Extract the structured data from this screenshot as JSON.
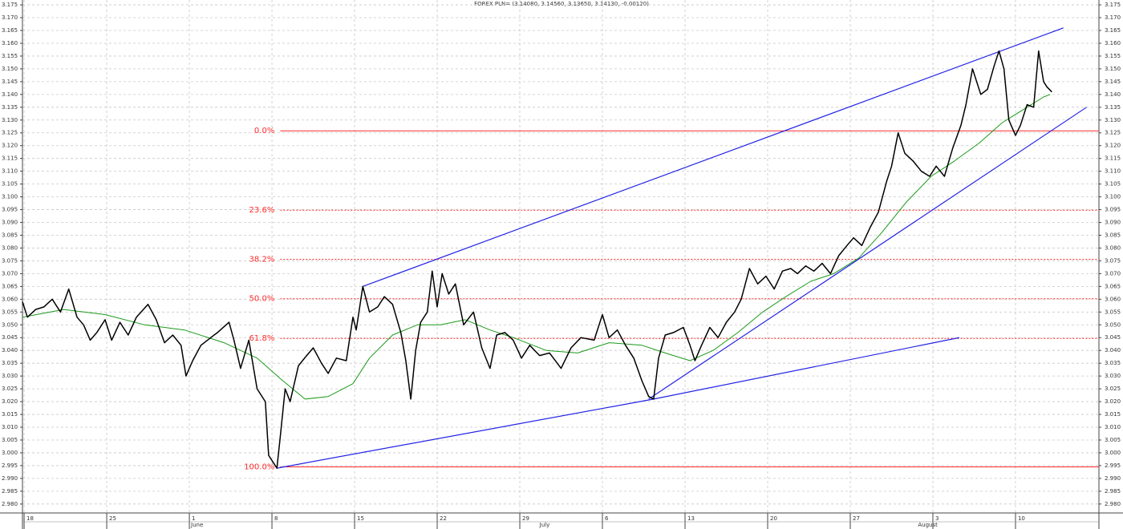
{
  "chart_data": {
    "type": "line",
    "title": "FOREX PLN= (3.14080, 3.14560, 3.13650, 3.14130, -0.00120)",
    "grid": true,
    "xlim": [
      -0.1,
      65.05
    ],
    "ylim": [
      2.9765,
      3.1769
    ],
    "xticks": [
      {
        "value": 0,
        "label": "18"
      },
      {
        "value": 5,
        "label": "25"
      },
      {
        "value": 10,
        "label": "1"
      },
      {
        "value": 15,
        "label": "8"
      },
      {
        "value": 20,
        "label": "15"
      },
      {
        "value": 25,
        "label": "22"
      },
      {
        "value": 30,
        "label": "29"
      },
      {
        "value": 35,
        "label": "6"
      },
      {
        "value": 40,
        "label": "13"
      },
      {
        "value": 45,
        "label": "20"
      },
      {
        "value": 50,
        "label": "27"
      },
      {
        "value": 55,
        "label": "3"
      },
      {
        "value": 60,
        "label": "10"
      }
    ],
    "month_labels": [
      {
        "value": 10,
        "label": "June"
      },
      {
        "value": 31.1,
        "label": "July"
      },
      {
        "value": 54.0,
        "label": "August"
      }
    ],
    "yticks": [
      3.175,
      {
        "value": 3.17,
        "label": "3.170"
      },
      3.165,
      {
        "value": 3.16,
        "label": "3.160"
      },
      3.155,
      {
        "value": 3.15,
        "label": "3.150"
      },
      3.145,
      {
        "value": 3.14,
        "label": "3.140"
      },
      3.135,
      {
        "value": 3.13,
        "label": "3.130"
      },
      3.125,
      {
        "value": 3.12,
        "label": "3.120"
      },
      3.115,
      {
        "value": 3.11,
        "label": "3.110"
      },
      3.105,
      {
        "value": 3.1,
        "label": "3.100"
      },
      3.095,
      {
        "value": 3.09,
        "label": "3.090"
      },
      3.085,
      {
        "value": 3.08,
        "label": "3.080"
      },
      3.075,
      {
        "value": 3.07,
        "label": "3.070"
      },
      3.065,
      {
        "value": 3.06,
        "label": "3.060"
      },
      3.055,
      {
        "value": 3.05,
        "label": "3.050"
      },
      3.045,
      {
        "value": 3.04,
        "label": "3.040"
      },
      3.035,
      {
        "value": 3.03,
        "label": "3.030"
      },
      3.025,
      {
        "value": 3.02,
        "label": "3.020"
      },
      3.015,
      {
        "value": 3.01,
        "label": "3.010"
      },
      3.005,
      {
        "value": 3,
        "label": "3.000"
      },
      2.995,
      {
        "value": 2.99,
        "label": "2.990"
      },
      2.985,
      {
        "value": 2.98,
        "label": "2.980"
      }
    ],
    "series": [
      {
        "color": "#000000",
        "x": [
          -0.1,
          0.2,
          0.7,
          1.2,
          1.7,
          2.2,
          2.7,
          3.2,
          3.6,
          4.0,
          4.4,
          4.9,
          5.3,
          5.8,
          6.3,
          6.8,
          7.5,
          8.0,
          8.5,
          9.0,
          9.5,
          9.8,
          10.2,
          10.7,
          11.3,
          11.7,
          12.4,
          12.7,
          13.1,
          13.6,
          14.1,
          14.6,
          14.8,
          15.1,
          15.3,
          15.5,
          15.8,
          16.1,
          16.6,
          17.1,
          17.5,
          18.0,
          18.4,
          18.9,
          19.5,
          19.9,
          20.1,
          20.5,
          20.9,
          21.4,
          21.8,
          22.3,
          22.8,
          23.1,
          23.4,
          23.7,
          24.0,
          24.4,
          24.7,
          25.0,
          25.3,
          25.7,
          26.1,
          26.6,
          27.2,
          27.7,
          28.2,
          28.6,
          29.1,
          29.6,
          30.1,
          30.6,
          31.2,
          31.8,
          32.5,
          33.1,
          33.7,
          34.5,
          35.0,
          35.4,
          35.9,
          36.4,
          36.9,
          37.4,
          37.8,
          38.1,
          38.4,
          38.8,
          39.3,
          39.9,
          40.3,
          40.6,
          41.0,
          41.5,
          42.0,
          42.5,
          43.0,
          43.4,
          43.9,
          44.4,
          44.9,
          45.4,
          45.9,
          46.4,
          46.8,
          47.3,
          47.8,
          48.3,
          48.8,
          49.3,
          49.8,
          50.2,
          50.7,
          51.2,
          51.7,
          52.2,
          52.5,
          52.9,
          53.3,
          53.8,
          54.3,
          54.8,
          55.2,
          55.7,
          56.2,
          56.7,
          57.0,
          57.4,
          57.9,
          58.3,
          58.7,
          59.0,
          59.3,
          59.6,
          60.0,
          60.3,
          60.7,
          61.1,
          61.4,
          61.7,
          61.9,
          62.2
        ],
        "values": [
          3.059,
          3.053,
          3.056,
          3.057,
          3.06,
          3.055,
          3.064,
          3.053,
          3.05,
          3.044,
          3.047,
          3.052,
          3.044,
          3.051,
          3.046,
          3.053,
          3.058,
          3.052,
          3.043,
          3.046,
          3.042,
          3.03,
          3.036,
          3.042,
          3.045,
          3.047,
          3.051,
          3.044,
          3.033,
          3.044,
          3.025,
          3.02,
          2.999,
          2.996,
          2.994,
          3.006,
          3.025,
          3.02,
          3.034,
          3.038,
          3.041,
          3.035,
          3.031,
          3.037,
          3.036,
          3.053,
          3.048,
          3.065,
          3.055,
          3.057,
          3.061,
          3.058,
          3.047,
          3.036,
          3.021,
          3.04,
          3.051,
          3.055,
          3.071,
          3.057,
          3.07,
          3.062,
          3.066,
          3.05,
          3.055,
          3.041,
          3.033,
          3.046,
          3.047,
          3.044,
          3.037,
          3.042,
          3.038,
          3.039,
          3.033,
          3.041,
          3.045,
          3.044,
          3.054,
          3.045,
          3.048,
          3.042,
          3.037,
          3.028,
          3.022,
          3.021,
          3.037,
          3.046,
          3.047,
          3.049,
          3.042,
          3.036,
          3.042,
          3.049,
          3.045,
          3.051,
          3.055,
          3.06,
          3.072,
          3.066,
          3.069,
          3.064,
          3.071,
          3.072,
          3.07,
          3.073,
          3.071,
          3.074,
          3.07,
          3.077,
          3.081,
          3.084,
          3.081,
          3.088,
          3.094,
          3.106,
          3.112,
          3.125,
          3.117,
          3.114,
          3.11,
          3.108,
          3.112,
          3.108,
          3.119,
          3.128,
          3.136,
          3.15,
          3.14,
          3.142,
          3.151,
          3.157,
          3.15,
          3.13,
          3.124,
          3.128,
          3.136,
          3.135,
          3.157,
          3.145,
          3.143,
          3.141
        ]
      },
      {
        "color": "#1a9a1a",
        "x": [
          -0.1,
          2.4,
          4.9,
          7.3,
          9.7,
          12.1,
          14.1,
          15.5,
          17.0,
          18.4,
          19.9,
          20.9,
          22.3,
          23.8,
          25.2,
          26.7,
          28.2,
          29.6,
          31.6,
          33.5,
          35.4,
          37.4,
          38.8,
          40.3,
          41.7,
          43.2,
          44.7,
          46.1,
          47.6,
          49.0,
          50.5,
          51.9,
          53.4,
          54.9,
          56.3,
          57.8,
          59.2,
          60.7,
          61.7,
          62.1
        ],
        "values": [
          3.053,
          3.056,
          3.054,
          3.05,
          3.048,
          3.043,
          3.037,
          3.029,
          3.021,
          3.022,
          3.027,
          3.037,
          3.046,
          3.05,
          3.05,
          3.052,
          3.048,
          3.045,
          3.04,
          3.039,
          3.043,
          3.042,
          3.039,
          3.036,
          3.04,
          3.047,
          3.055,
          3.061,
          3.067,
          3.07,
          3.076,
          3.086,
          3.098,
          3.108,
          3.114,
          3.121,
          3.129,
          3.135,
          3.139,
          3.14
        ]
      }
    ],
    "trendline_color": "#2323e6",
    "trendlines": [
      {
        "x": [
          20.5,
          62.9
        ],
        "y": [
          3.065,
          3.166
        ]
      },
      {
        "x": [
          15.3,
          38.1
        ],
        "y": [
          2.994,
          3.021
        ]
      },
      {
        "x": [
          38.1,
          56.6
        ],
        "y": [
          3.021,
          3.045
        ]
      },
      {
        "x": [
          37.8,
          64.3
        ],
        "y": [
          3.021,
          3.135
        ]
      }
    ],
    "fib_color": "#ff2a2a",
    "fib_start": 15.5,
    "fib_levels": [
      {
        "label": "0.0%",
        "price": 3.1258,
        "style": "solid"
      },
      {
        "label": "23.6%",
        "price": 3.0948,
        "style": "dotted"
      },
      {
        "label": "38.2%",
        "price": 3.0756,
        "style": "dotted"
      },
      {
        "label": "50.0%",
        "price": 3.0602,
        "style": "dotted"
      },
      {
        "label": "61.8%",
        "price": 3.0447,
        "style": "dotted"
      },
      {
        "label": "100.0%",
        "price": 2.9945,
        "style": "solid"
      }
    ]
  }
}
